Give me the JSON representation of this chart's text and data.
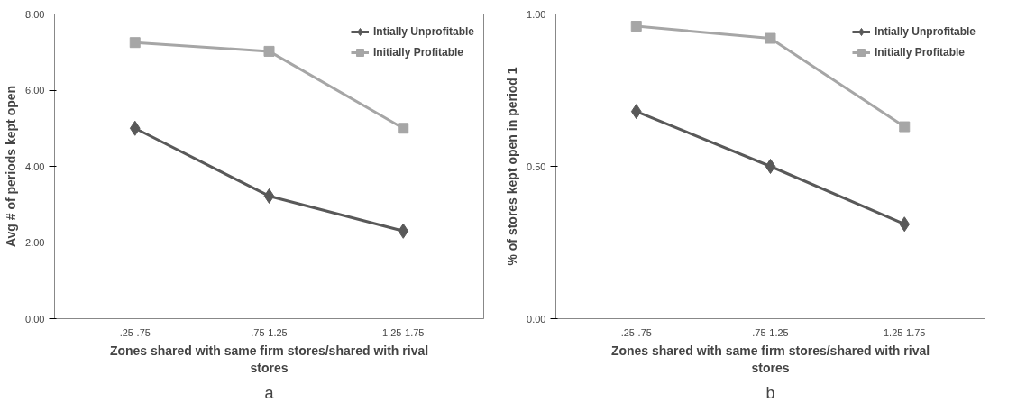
{
  "chart_data": [
    {
      "type": "line",
      "ylabel": "Avg # of periods kept open",
      "xlabel": "Zones shared with same firm stores/shared with rival stores",
      "categories": [
        ".25-.75",
        ".75-1.25",
        "1.25-1.75"
      ],
      "series": [
        {
          "name": "Intially Unprofitable",
          "color": "#595959",
          "marker": "diamond",
          "values": [
            5.0,
            3.22,
            2.3
          ]
        },
        {
          "name": "Initially Profitable",
          "color": "#a6a6a6",
          "marker": "square",
          "values": [
            7.25,
            7.02,
            5.0
          ]
        }
      ],
      "ylim": [
        0,
        8
      ],
      "yticks": [
        {
          "value": 0,
          "label": "0.00"
        },
        {
          "value": 2,
          "label": "2.00"
        },
        {
          "value": 4,
          "label": "4.00"
        },
        {
          "value": 6,
          "label": "6.00"
        },
        {
          "value": 8,
          "label": "8.00"
        }
      ],
      "grid": false,
      "legend": "top right",
      "annotations": [
        "a"
      ]
    },
    {
      "type": "line",
      "ylabel": "% of stores kept open in period 1",
      "xlabel": "Zones shared with same firm stores/shared with rival stores",
      "categories": [
        ".25-.75",
        ".75-1.25",
        "1.25-1.75"
      ],
      "series": [
        {
          "name": "Intially Unprofitable",
          "color": "#595959",
          "marker": "diamond",
          "values": [
            0.68,
            0.5,
            0.31
          ]
        },
        {
          "name": "Initially Profitable",
          "color": "#a6a6a6",
          "marker": "square",
          "values": [
            0.96,
            0.92,
            0.63
          ]
        }
      ],
      "ylim": [
        0,
        1
      ],
      "yticks": [
        {
          "value": 0,
          "label": "0.00"
        },
        {
          "value": 0.5,
          "label": "0.50"
        },
        {
          "value": 1,
          "label": "1.00"
        }
      ],
      "grid": false,
      "legend": "top right",
      "annotations": [
        "b"
      ]
    }
  ]
}
